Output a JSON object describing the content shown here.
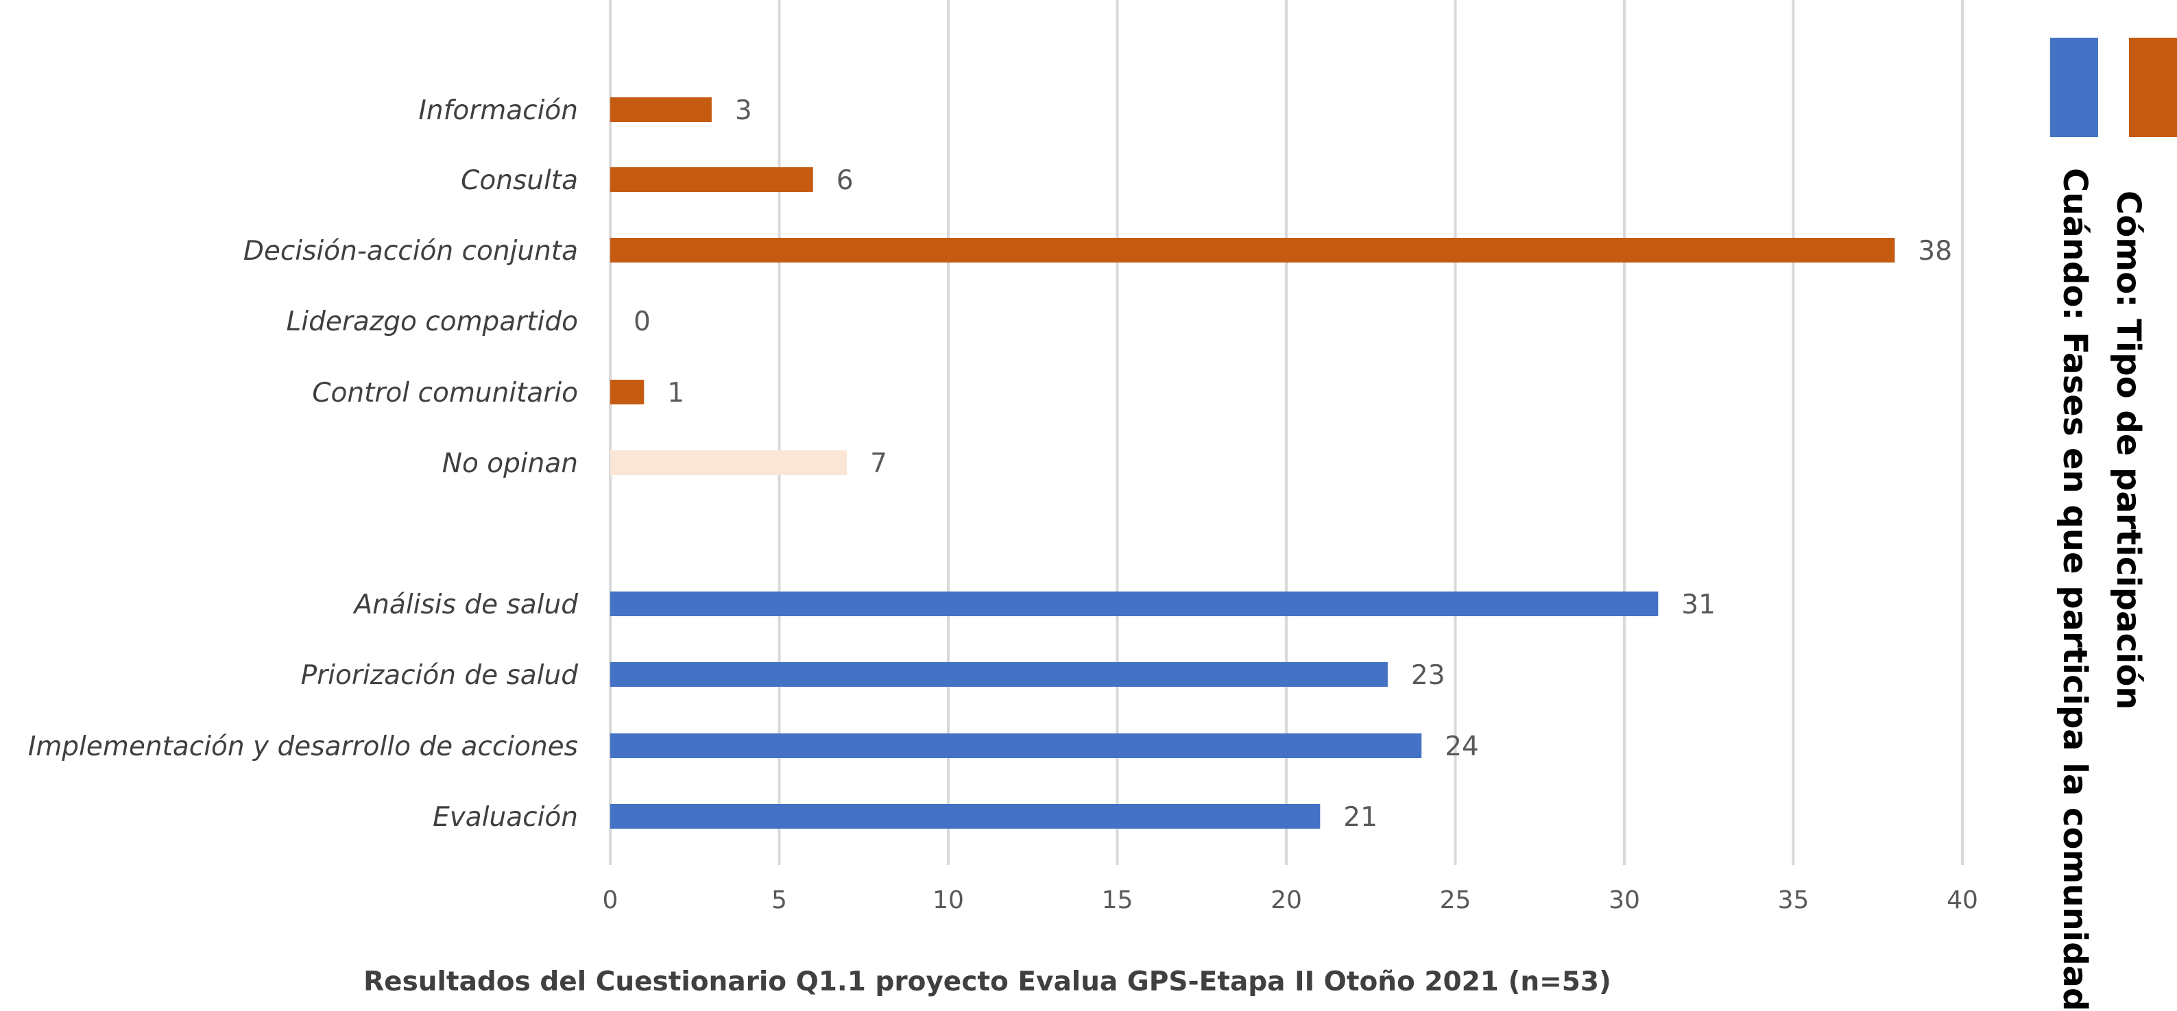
{
  "chart_data": {
    "type": "bar",
    "orientation": "horizontal",
    "xlabel": "Resultados del Cuestionario  Q1.1 proyecto Evalua GPS-Etapa II Otoño 2021  (n=53)",
    "xlim": [
      0,
      40
    ],
    "xticks": [
      "0",
      "5",
      "10",
      "15",
      "20",
      "25",
      "30",
      "35",
      "40"
    ],
    "grid": true,
    "legend_placement": "right",
    "series": [
      {
        "name": "Cómo: Tipo de participación",
        "color": "#c55a11",
        "items": [
          {
            "label": "Información",
            "value": 3,
            "value_label": "3"
          },
          {
            "label": "Consulta",
            "value": 6,
            "value_label": "6"
          },
          {
            "label": "Decisión-acción conjunta",
            "value": 38,
            "value_label": "38"
          },
          {
            "label": "Liderazgo compartido",
            "value": 0,
            "value_label": "0"
          },
          {
            "label": "Control comunitario",
            "value": 1,
            "value_label": "1"
          },
          {
            "label": "No opinan",
            "value": 7,
            "value_label": "7",
            "color": "#fbe5d6"
          }
        ]
      },
      {
        "name": "Cuándo: Fases en que participa la comunidad",
        "color": "#4472c4",
        "items": [
          {
            "label": "Análisis de salud",
            "value": 31,
            "value_label": "31"
          },
          {
            "label": "Priorización de salud",
            "value": 23,
            "value_label": "23"
          },
          {
            "label": "Implementación y desarrollo de acciones",
            "value": 24,
            "value_label": "24"
          },
          {
            "label": "Evaluación",
            "value": 21,
            "value_label": "21"
          }
        ]
      }
    ]
  }
}
